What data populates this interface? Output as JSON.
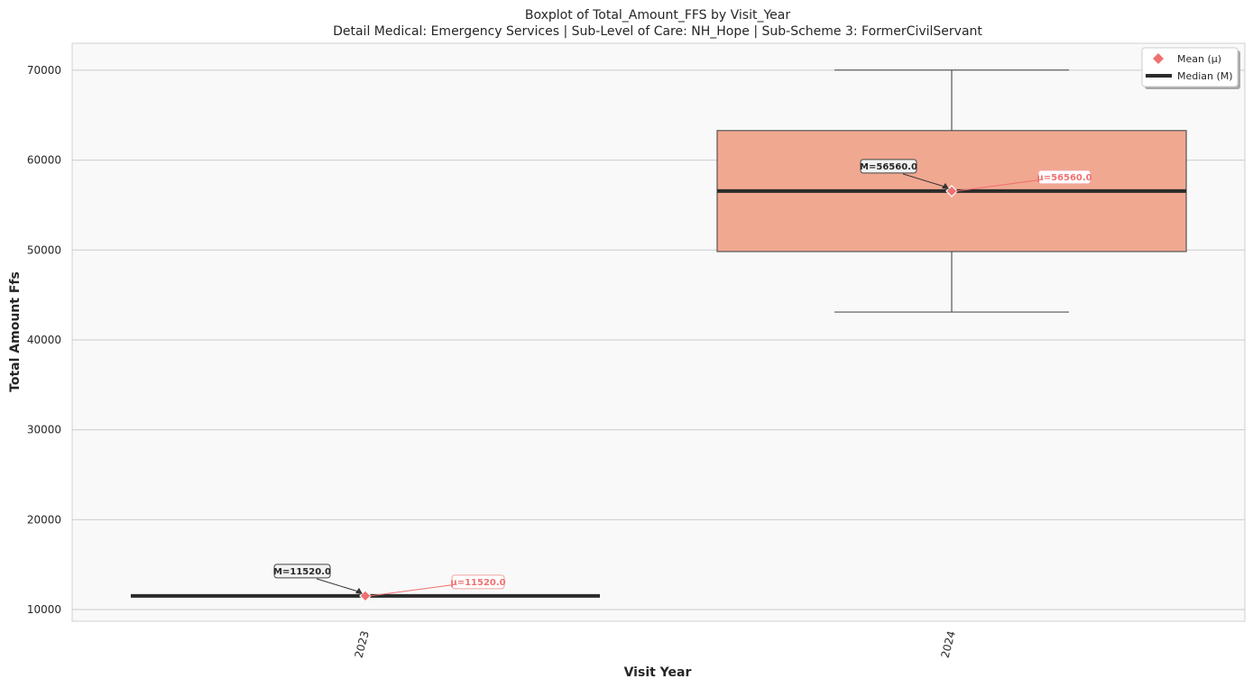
{
  "chart_data": {
    "type": "box",
    "title": "Boxplot of Total_Amount_FFS by Visit_Year",
    "subtitle": "Detail Medical: Emergency Services | Sub-Level of Care: NH_Hope | Sub-Scheme 3: FormerCivilServant",
    "xlabel": "Visit Year",
    "ylabel": "Total Amount Ffs",
    "ylim": [
      8700,
      73000
    ],
    "yticks": [
      10000,
      20000,
      30000,
      40000,
      50000,
      60000,
      70000
    ],
    "ytick_labels": [
      "10000",
      "20000",
      "30000",
      "40000",
      "50000",
      "60000",
      "70000"
    ],
    "grid": true,
    "legend_position": "top-right",
    "legend": [
      {
        "label": "Mean (μ)",
        "marker": "diamond",
        "color": "#f07070"
      },
      {
        "label": "Median (M)",
        "marker": "line",
        "color": "#2b2b2b"
      }
    ],
    "categories": [
      "2023",
      "2024"
    ],
    "boxes": [
      {
        "category": "2023",
        "whisker_low": 11520,
        "q1": 11520,
        "median": 11520,
        "q3": 11520,
        "whisker_high": 11520,
        "mean": 11520,
        "median_label": "M=11520.0",
        "mean_label": "μ=11520.0",
        "color": "#f1a891"
      },
      {
        "category": "2024",
        "whisker_low": 43100,
        "q1": 49830,
        "median": 56560,
        "q3": 63290,
        "whisker_high": 70020,
        "mean": 56560,
        "median_label": "M=56560.0",
        "mean_label": "μ=56560.0",
        "color": "#f1a891"
      }
    ],
    "colors": {
      "plot_bg": "#f9f9f9",
      "grid": "#cccccc",
      "box_edge": "#555555",
      "median": "#2b2b2b",
      "mean": "#f07070",
      "text": "#262626"
    }
  }
}
